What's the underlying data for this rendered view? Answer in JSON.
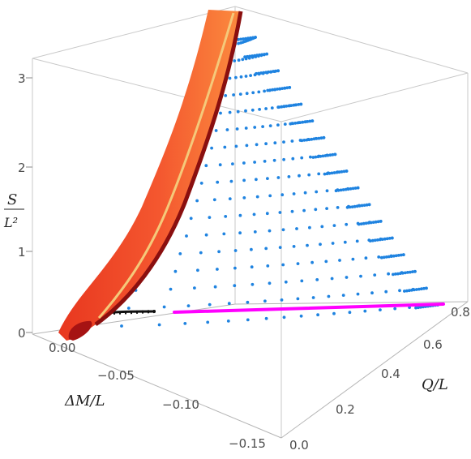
{
  "chart_data": {
    "type": "scatter-3d",
    "axes": {
      "x": {
        "label": "ΔM/L",
        "ticks": [
          "0.00",
          "−0.05",
          "−0.10",
          "−0.15"
        ],
        "range": [
          -0.17,
          0.0
        ]
      },
      "y": {
        "label": "Q/L",
        "ticks": [
          "0.0",
          "0.2",
          "0.4",
          "0.6",
          "0.8"
        ],
        "range": [
          0.0,
          0.8
        ]
      },
      "z": {
        "label_num": "S",
        "label_den": "L²",
        "ticks": [
          "0",
          "1",
          "2",
          "3"
        ],
        "range": [
          0,
          3.1
        ]
      }
    },
    "series": [
      {
        "kind": "points",
        "color": "#1f83e0",
        "description_values": "dQ/L levels",
        "levels": [
          0.0,
          0.05,
          0.1,
          0.15,
          0.2,
          0.25,
          0.3,
          0.35,
          0.4,
          0.45,
          0.5,
          0.55,
          0.6,
          0.65,
          0.7,
          0.75,
          0.8
        ]
      },
      {
        "kind": "line",
        "color": "#ff00ff",
        "points": [
          [
            -0.05,
            0.0,
            0.0
          ],
          [
            -0.17,
            0.8,
            0.0
          ]
        ]
      },
      {
        "kind": "surface",
        "color": "#f0452c"
      },
      {
        "kind": "curve",
        "color": "#f5c97a"
      },
      {
        "kind": "curve",
        "color": "#111111"
      }
    ],
    "grid": false,
    "box": true
  }
}
